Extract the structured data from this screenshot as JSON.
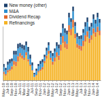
{
  "chart_data": {
    "type": "bar",
    "stacked": true,
    "legend": "top-left",
    "tick_labels": "x",
    "categories": [
      "May-10",
      null,
      "Jul-10",
      null,
      "Sep-10",
      null,
      "Nov-10",
      null,
      "Jan-11",
      null,
      "Mar-11",
      null,
      "May-11",
      null,
      "Jul-11",
      null,
      "Sep-11",
      null,
      "Nov-11",
      null,
      "Jan-12",
      null,
      "Mar-12",
      null,
      "May-12",
      null,
      "Jul-12",
      null,
      "Sep-12",
      null,
      "Nov-12",
      null,
      "Jan-13",
      null,
      "Mar-13",
      null,
      "May-13",
      null,
      "Jul-13",
      null,
      "Sep-13",
      null,
      "Nov-13",
      null,
      "Jan-14",
      null,
      "Mar-14",
      null
    ],
    "ylim": [
      0,
      100
    ],
    "series": [
      {
        "name": "Refinancings",
        "color": "#f5b324",
        "values": [
          8,
          6,
          10,
          12,
          14,
          20,
          18,
          24,
          30,
          28,
          26,
          32,
          24,
          18,
          12,
          4,
          6,
          10,
          12,
          14,
          22,
          28,
          34,
          26,
          20,
          24,
          30,
          26,
          38,
          48,
          42,
          40,
          62,
          58,
          68,
          54,
          42,
          40,
          38,
          44,
          50,
          56,
          48,
          52,
          60,
          56,
          62,
          58
        ]
      },
      {
        "name": "Dividend Recap",
        "color": "#e0672a",
        "values": [
          3,
          2,
          3,
          2,
          4,
          5,
          6,
          7,
          5,
          4,
          3,
          4,
          3,
          2,
          1,
          0.5,
          1,
          2,
          2,
          3,
          3,
          4,
          4,
          3,
          4,
          5,
          6,
          6,
          8,
          9,
          8,
          7,
          9,
          8,
          10,
          6,
          5,
          5,
          6,
          7,
          8,
          7,
          6,
          6,
          7,
          6,
          7,
          6
        ]
      },
      {
        "name": "M&A",
        "color": "#2a8fd0",
        "values": [
          6,
          5,
          7,
          8,
          6,
          8,
          9,
          10,
          8,
          9,
          10,
          9,
          10,
          8,
          6,
          3,
          5,
          6,
          7,
          6,
          5,
          6,
          7,
          6,
          7,
          8,
          8,
          9,
          10,
          10,
          11,
          12,
          10,
          9,
          11,
          10,
          9,
          8,
          9,
          10,
          11,
          12,
          10,
          11,
          12,
          11,
          12,
          10
        ]
      },
      {
        "name": "New money (other)",
        "color": "#1b3f6b",
        "values": [
          4,
          3,
          4,
          5,
          4,
          5,
          5,
          6,
          5,
          5,
          6,
          5,
          6,
          5,
          4,
          2,
          3,
          3,
          4,
          4,
          3,
          4,
          4,
          3,
          4,
          4,
          5,
          5,
          5,
          6,
          6,
          5,
          6,
          5,
          6,
          5,
          5,
          4,
          5,
          5,
          6,
          6,
          5,
          5,
          6,
          5,
          6,
          5
        ]
      }
    ]
  }
}
